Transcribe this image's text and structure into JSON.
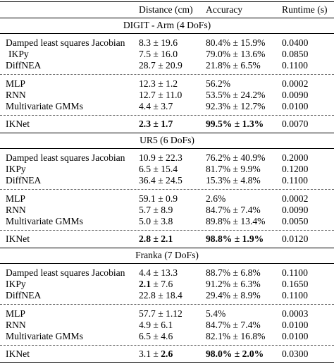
{
  "header": {
    "col1": "Distance (cm)",
    "col2": "Accuracy",
    "col3": "Runtime (s)"
  },
  "sections": [
    {
      "title": "DIGIT - Arm (4 DoFs)",
      "rows": [
        {
          "method": "Damped least squares Jacobian",
          "distance": "8.3 ± 19.6",
          "accuracy": "80.4% ± 15.9%",
          "runtime": "0.0400"
        },
        {
          "method": "IKPy",
          "distance": "7.5 ± 16.0",
          "accuracy": "79.0% ± 13.6%",
          "runtime": "0.0850"
        },
        {
          "method": "DiffNEA",
          "distance": "28.7 ± 20.9",
          "accuracy": "21.8% ± 6.5%",
          "runtime": "0.1100"
        },
        {
          "method": "MLP",
          "distance": "12.3 ± 1.2",
          "accuracy": "56.2%",
          "runtime": "0.0002"
        },
        {
          "method": "RNN",
          "distance": "12.7 ± 11.0",
          "accuracy": "53.5% ± 24.2%",
          "runtime": "0.0090"
        },
        {
          "method": "Multivariate GMMs",
          "distance": "4.4 ± 3.7",
          "accuracy": "92.3% ± 12.7%",
          "runtime": "0.0100"
        },
        {
          "method": "IKNet",
          "distance": "2.3 ± 1.7",
          "accuracy": "99.5% ± 1.3%",
          "runtime": "0.0070"
        }
      ]
    },
    {
      "title": "UR5 (6 DoFs)",
      "rows": [
        {
          "method": "Damped least squares Jacobian",
          "distance": "10.9 ± 22.3",
          "accuracy": "76.2% ± 40.9%",
          "runtime": "0.2000"
        },
        {
          "method": "IKPy",
          "distance": "6.5 ± 15.4",
          "accuracy": "81.7% ± 9.9%",
          "runtime": "0.1200"
        },
        {
          "method": "DiffNEA",
          "distance": "36.4 ± 24.5",
          "accuracy": "15.3% ± 4.8%",
          "runtime": "0.1100"
        },
        {
          "method": "MLP",
          "distance": "59.1 ± 0.9",
          "accuracy": "2.6%",
          "runtime": "0.0002"
        },
        {
          "method": "RNN",
          "distance": "5.7 ± 8.9",
          "accuracy": "84.7% ± 7.4%",
          "runtime": "0.0090"
        },
        {
          "method": "Multivariate GMMs",
          "distance": "5.0 ± 3.8",
          "accuracy": "89.8% ± 13.4%",
          "runtime": "0.0050"
        },
        {
          "method": "IKNet",
          "distance": "2.8 ± 2.1",
          "accuracy": "98.8% ± 1.9%",
          "runtime": "0.0120"
        }
      ]
    },
    {
      "title": "Franka (7 DoFs)",
      "rows": [
        {
          "method": "Damped least squares Jacobian",
          "distance": "4.4 ± 13.3",
          "accuracy": "88.7% ± 6.8%",
          "runtime": "0.1100"
        },
        {
          "method": "IKPy",
          "distance_a": "2.1",
          "distance_b": " ± 7.6",
          "accuracy": "91.2% ± 6.3%",
          "runtime": "0.1650"
        },
        {
          "method": "DiffNEA",
          "distance": "22.8 ± 18.4",
          "accuracy": "29.4% ± 8.9%",
          "runtime": "0.1100"
        },
        {
          "method": "MLP",
          "distance": "57.7 ± 1.12",
          "accuracy": "5.4%",
          "runtime": "0.0003"
        },
        {
          "method": "RNN",
          "distance": "4.9 ± 6.1",
          "accuracy": "84.7% ± 7.4%",
          "runtime": "0.0100"
        },
        {
          "method": "Multivariate GMMs",
          "distance": "6.5 ± 4.6",
          "accuracy": "82.1% ± 16.8%",
          "runtime": "0.0100"
        },
        {
          "method": "IKNet",
          "distance_a": "3.1 ± ",
          "distance_b": "2.6",
          "accuracy": "98.0% ± 2.0%",
          "runtime": "0.0300"
        }
      ]
    }
  ]
}
